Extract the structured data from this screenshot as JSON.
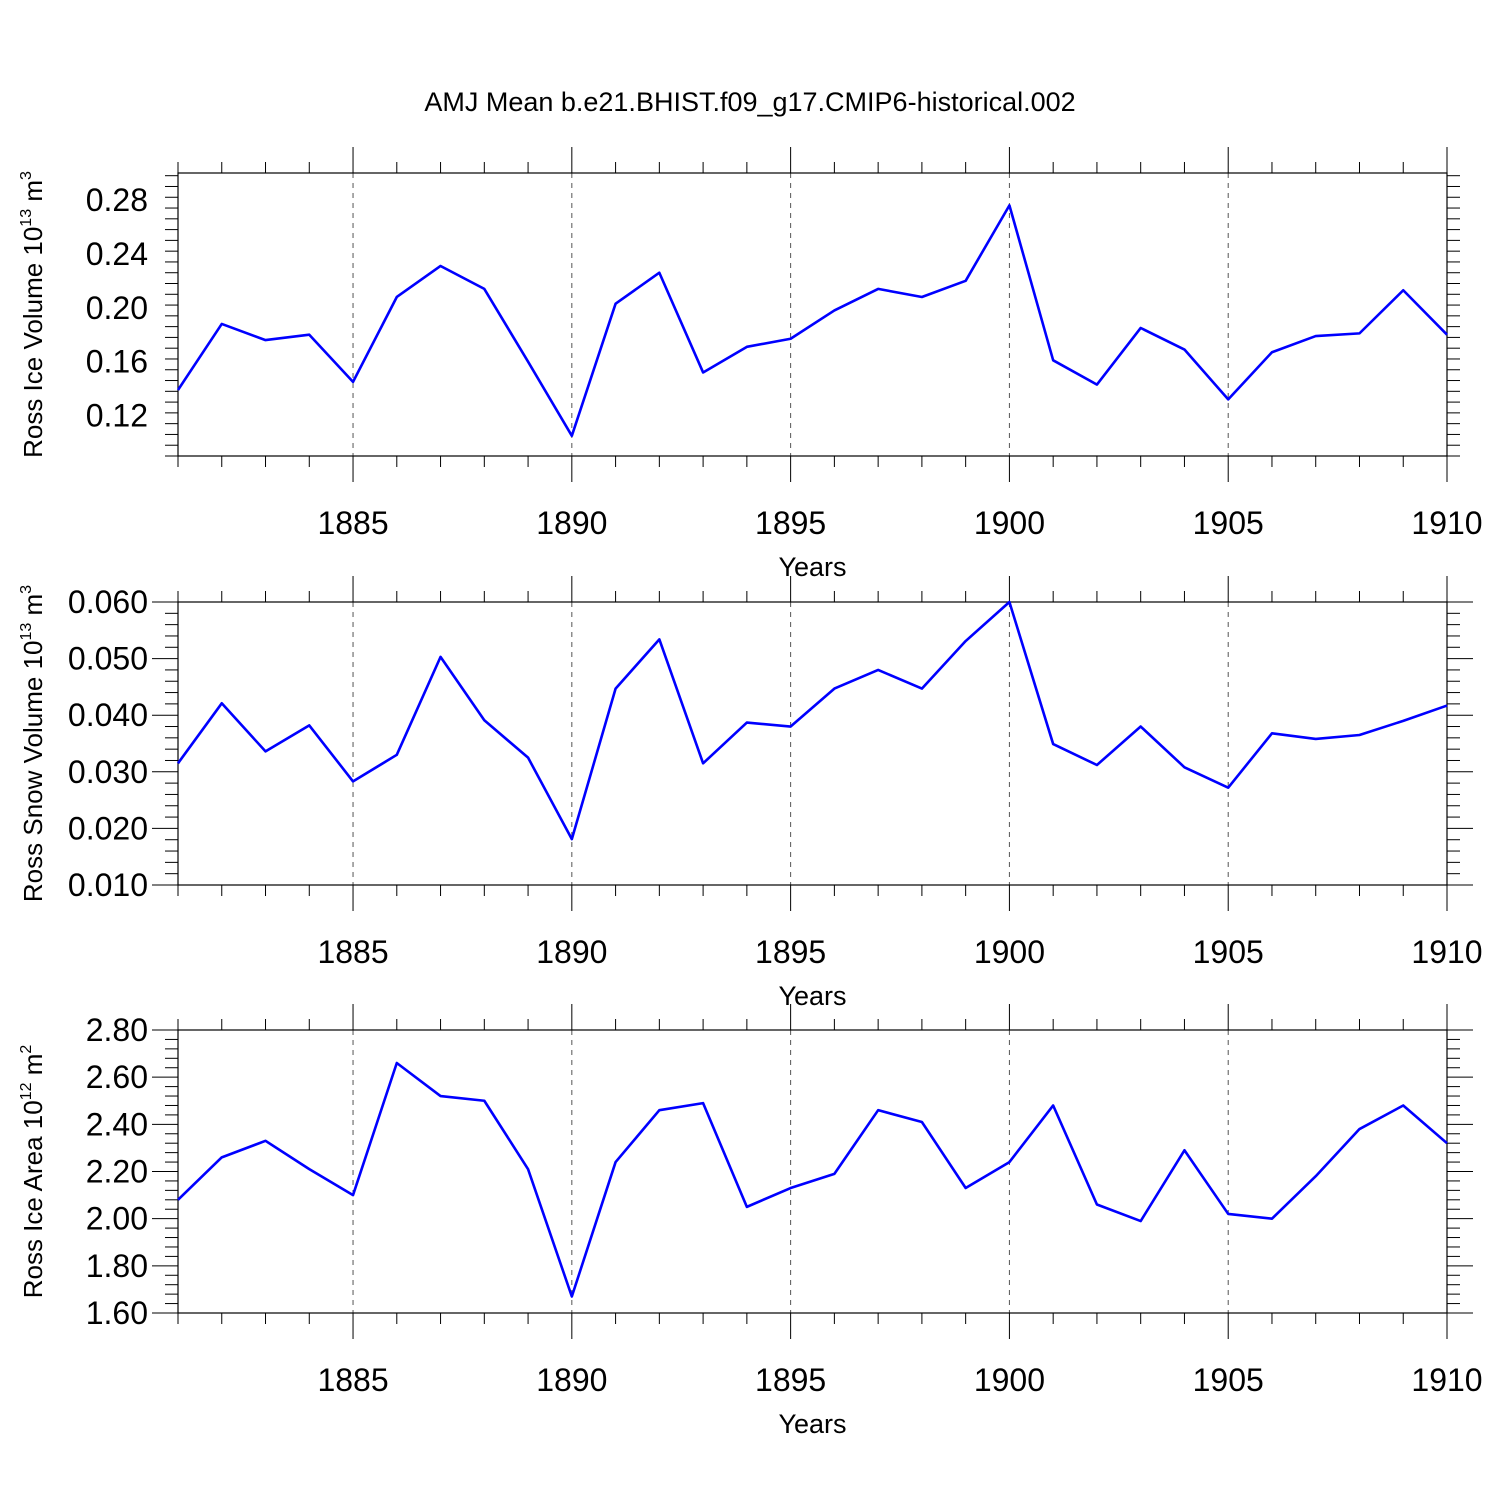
{
  "figure": {
    "title": "AMJ Mean b.e21.BHIST.f09_g17.CMIP6-historical.002",
    "line_color": "#0000ff",
    "grid_style": "dashed vertical lines at major x ticks"
  },
  "chart_data": [
    {
      "type": "line",
      "ylabel": {
        "main": "Ross Ice Volume 10",
        "sup": "13",
        "unit": " m",
        "unit_sup": "3"
      },
      "xlabel": "Years",
      "xlim": [
        1881,
        1910
      ],
      "ylim": [
        0.09,
        0.3
      ],
      "x_ticks": [
        1885,
        1890,
        1895,
        1900,
        1905,
        1910
      ],
      "y_ticks": [
        "0.12",
        "0.16",
        "0.20",
        "0.24",
        "0.28"
      ],
      "grid": true,
      "x": [
        1881,
        1882,
        1883,
        1884,
        1885,
        1886,
        1887,
        1888,
        1889,
        1890,
        1891,
        1892,
        1893,
        1894,
        1895,
        1896,
        1897,
        1898,
        1899,
        1900,
        1901,
        1902,
        1903,
        1904,
        1905,
        1906,
        1907,
        1908,
        1909,
        1910
      ],
      "series": [
        {
          "values": [
            0.139,
            0.188,
            0.176,
            0.18,
            0.145,
            0.208,
            0.231,
            0.214,
            0.16,
            0.105,
            0.203,
            0.226,
            0.152,
            0.171,
            0.177,
            0.198,
            0.214,
            0.208,
            0.22,
            0.276,
            0.161,
            0.143,
            0.185,
            0.169,
            0.132,
            0.167,
            0.179,
            0.181,
            0.213,
            0.18
          ]
        }
      ]
    },
    {
      "type": "line",
      "ylabel": {
        "main": "Ross Snow Volume 10",
        "sup": "13",
        "unit": " m",
        "unit_sup": "3"
      },
      "xlabel": "Years",
      "xlim": [
        1881,
        1910
      ],
      "ylim": [
        0.01,
        0.06
      ],
      "x_ticks": [
        1885,
        1890,
        1895,
        1900,
        1905,
        1910
      ],
      "y_ticks": [
        "0.010",
        "0.020",
        "0.030",
        "0.040",
        "0.050",
        "0.060"
      ],
      "grid": true,
      "x": [
        1881,
        1882,
        1883,
        1884,
        1885,
        1886,
        1887,
        1888,
        1889,
        1890,
        1891,
        1892,
        1893,
        1894,
        1895,
        1896,
        1897,
        1898,
        1899,
        1900,
        1901,
        1902,
        1903,
        1904,
        1905,
        1906,
        1907,
        1908,
        1909,
        1910
      ],
      "series": [
        {
          "values": [
            0.0315,
            0.0421,
            0.0336,
            0.0382,
            0.0283,
            0.033,
            0.0503,
            0.0391,
            0.0325,
            0.0181,
            0.0447,
            0.0534,
            0.0315,
            0.0387,
            0.038,
            0.0447,
            0.048,
            0.0447,
            0.0531,
            0.06,
            0.0349,
            0.0312,
            0.038,
            0.0308,
            0.0272,
            0.0368,
            0.0358,
            0.0365,
            0.039,
            0.0417
          ]
        }
      ]
    },
    {
      "type": "line",
      "ylabel": {
        "main": "Ross Ice Area 10",
        "sup": "12",
        "unit": " m",
        "unit_sup": "2"
      },
      "xlabel": "Years",
      "xlim": [
        1881,
        1910
      ],
      "ylim": [
        1.6,
        2.8
      ],
      "x_ticks": [
        1885,
        1890,
        1895,
        1900,
        1905,
        1910
      ],
      "y_ticks": [
        "1.60",
        "1.80",
        "2.00",
        "2.20",
        "2.40",
        "2.60",
        "2.80"
      ],
      "grid": true,
      "x": [
        1881,
        1882,
        1883,
        1884,
        1885,
        1886,
        1887,
        1888,
        1889,
        1890,
        1891,
        1892,
        1893,
        1894,
        1895,
        1896,
        1897,
        1898,
        1899,
        1900,
        1901,
        1902,
        1903,
        1904,
        1905,
        1906,
        1907,
        1908,
        1909,
        1910
      ],
      "series": [
        {
          "values": [
            2.08,
            2.26,
            2.33,
            2.21,
            2.1,
            2.66,
            2.52,
            2.5,
            2.21,
            1.67,
            2.24,
            2.46,
            2.49,
            2.05,
            2.13,
            2.19,
            2.46,
            2.41,
            2.13,
            2.24,
            2.48,
            2.06,
            1.99,
            2.29,
            2.02,
            2.0,
            2.18,
            2.38,
            2.48,
            2.32
          ]
        }
      ]
    }
  ]
}
